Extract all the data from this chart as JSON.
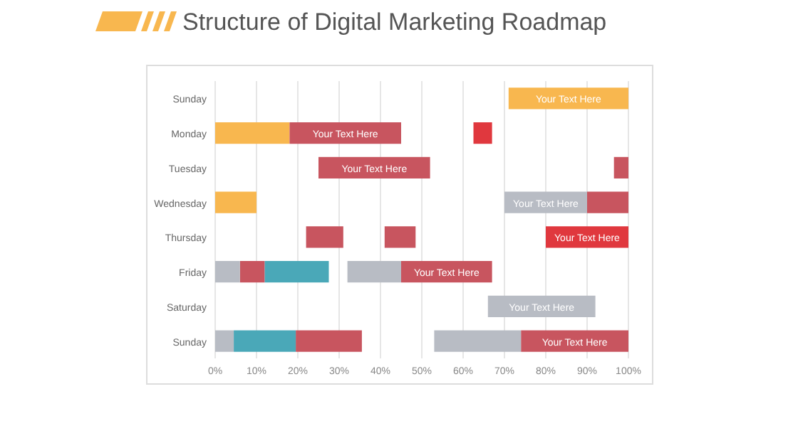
{
  "chart_data": {
    "type": "bar",
    "orientation": "horizontal",
    "title": "Structure of Digital Marketing Roadmap",
    "categories": [
      "Sunday",
      "Monday",
      "Tuesday",
      "Wednesday",
      "Thursday",
      "Friday",
      "Saturday",
      "Sunday"
    ],
    "series": [
      {
        "color": "#f8b74f",
        "base": [
          71,
          0,
          null,
          0,
          null,
          null,
          null,
          null
        ],
        "values": [
          29,
          18,
          null,
          10,
          null,
          null,
          null,
          null
        ],
        "value_labels": [
          "Your Text Here",
          null,
          null,
          null,
          null,
          null,
          null,
          null
        ]
      },
      {
        "color": "#c8555f",
        "base": [
          null,
          18,
          25,
          null,
          22,
          6,
          null,
          19.5
        ],
        "values": [
          null,
          27,
          27,
          null,
          9,
          6,
          null,
          16
        ],
        "value_labels": [
          null,
          "Your Text Here",
          "Your Text Here",
          null,
          null,
          null,
          null,
          null
        ]
      },
      {
        "color": "#c8555f",
        "base": [
          null,
          null,
          96.5,
          90,
          41,
          45,
          null,
          74
        ],
        "values": [
          null,
          null,
          3.5,
          10,
          7.5,
          22,
          null,
          26
        ],
        "value_labels": [
          null,
          null,
          null,
          null,
          null,
          "Your Text Here",
          null,
          "Your Text Here"
        ]
      },
      {
        "color": "#e0383e",
        "base": [
          null,
          62.5,
          null,
          null,
          80,
          null,
          null,
          null
        ],
        "values": [
          null,
          4.5,
          null,
          null,
          20,
          null,
          null,
          null
        ],
        "value_labels": [
          null,
          null,
          null,
          null,
          "Your Text Here",
          null,
          null,
          null
        ]
      },
      {
        "color": "#b8bcc4",
        "base": [
          null,
          null,
          null,
          70,
          null,
          0,
          66,
          0
        ],
        "values": [
          null,
          null,
          null,
          20,
          null,
          6,
          26,
          4.5
        ],
        "value_labels": [
          null,
          null,
          null,
          "Your Text Here",
          null,
          null,
          "Your Text Here",
          null
        ]
      },
      {
        "color": "#b8bcc4",
        "base": [
          null,
          null,
          null,
          null,
          null,
          32,
          null,
          53
        ],
        "values": [
          null,
          null,
          null,
          null,
          null,
          13,
          null,
          21
        ],
        "value_labels": [
          null,
          null,
          null,
          null,
          null,
          null,
          null,
          null
        ]
      },
      {
        "color": "#4aa8b8",
        "base": [
          null,
          null,
          null,
          null,
          null,
          12,
          null,
          4.5
        ],
        "values": [
          null,
          null,
          null,
          null,
          null,
          15.5,
          null,
          15
        ],
        "value_labels": [
          null,
          null,
          null,
          null,
          null,
          null,
          null,
          null
        ]
      }
    ],
    "xlim": [
      0,
      100
    ],
    "xticks": [
      {
        "value": 0,
        "label": "0%"
      },
      {
        "value": 10,
        "label": "10%"
      },
      {
        "value": 20,
        "label": "20%"
      },
      {
        "value": 30,
        "label": "30%"
      },
      {
        "value": 40,
        "label": "40%"
      },
      {
        "value": 50,
        "label": "50%"
      },
      {
        "value": 60,
        "label": "60%"
      },
      {
        "value": 70,
        "label": "70%"
      },
      {
        "value": 80,
        "label": "80%"
      },
      {
        "value": 90,
        "label": "90%"
      },
      {
        "value": 100,
        "label": "100%"
      }
    ],
    "grid": "x"
  }
}
